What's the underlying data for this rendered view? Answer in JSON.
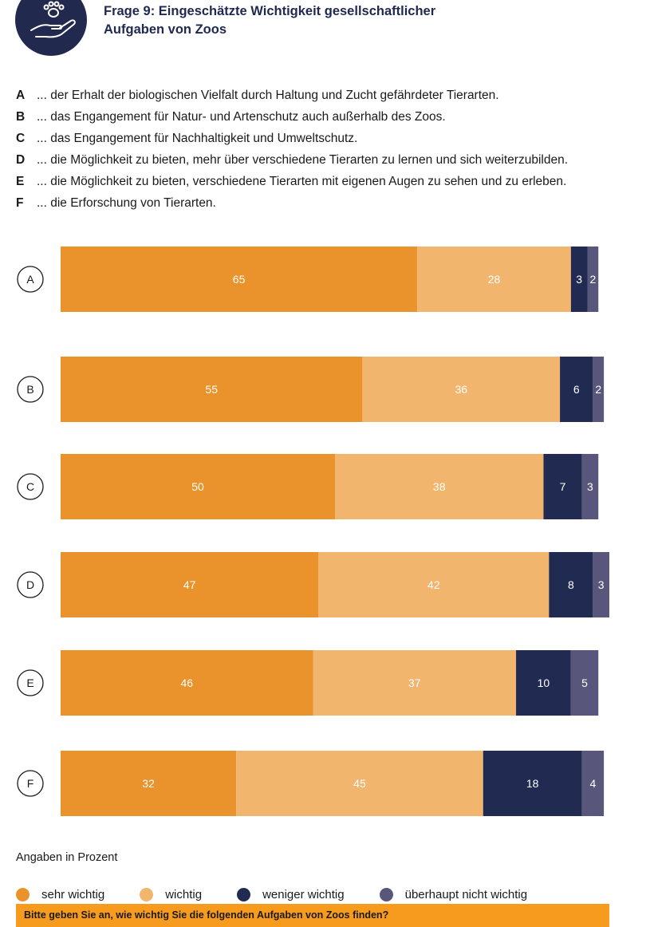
{
  "header": {
    "title_line1": "Frage 9: Eingeschätzte Wichtigkeit gesellschaftlicher",
    "title_line2": "Aufgaben von Zoos",
    "icon": "paw-in-hand-icon"
  },
  "items": [
    {
      "key": "A",
      "text": "... der Erhalt der biologischen Vielfalt durch Haltung und Zucht gefährdeter Tierarten."
    },
    {
      "key": "B",
      "text": "... das Engangement für Natur- und Artenschutz auch außerhalb des Zoos."
    },
    {
      "key": "C",
      "text": "... das Engangement für Nachhaltigkeit und Umweltschutz."
    },
    {
      "key": "D",
      "text": "... die Möglichkeit zu bieten, mehr über verschiedene Tierarten zu lernen und sich weiterzubilden."
    },
    {
      "key": "E",
      "text": "... die Möglichkeit zu bieten, verschiedene Tierarten mit eigenen Augen zu sehen und zu erleben."
    },
    {
      "key": "F",
      "text": "... die Erforschung von Tierarten."
    }
  ],
  "chart_data": {
    "type": "bar",
    "orientation": "horizontal",
    "stacked": true,
    "categories": [
      "A",
      "B",
      "C",
      "D",
      "E",
      "F"
    ],
    "series": [
      {
        "name": "sehr wichtig",
        "color": "#ea922b",
        "values": [
          65,
          55,
          50,
          47,
          46,
          32
        ]
      },
      {
        "name": "wichtig",
        "color": "#f2b56e",
        "values": [
          28,
          36,
          38,
          42,
          37,
          45
        ]
      },
      {
        "name": "weniger wichtig",
        "color": "#212b52",
        "values": [
          3,
          6,
          7,
          8,
          10,
          18
        ]
      },
      {
        "name": "überhaupt nicht wichtig",
        "color": "#58567a",
        "values": [
          2,
          2,
          3,
          3,
          5,
          4
        ]
      }
    ],
    "unit_note": "Angaben in Prozent",
    "legend_position": "bottom",
    "grid": false
  },
  "footer": {
    "question": "Bitte geben Sie an, wie wichtig Sie die folgenden Aufgaben von Zoos finden?",
    "bar_color": "#f79b1f"
  }
}
